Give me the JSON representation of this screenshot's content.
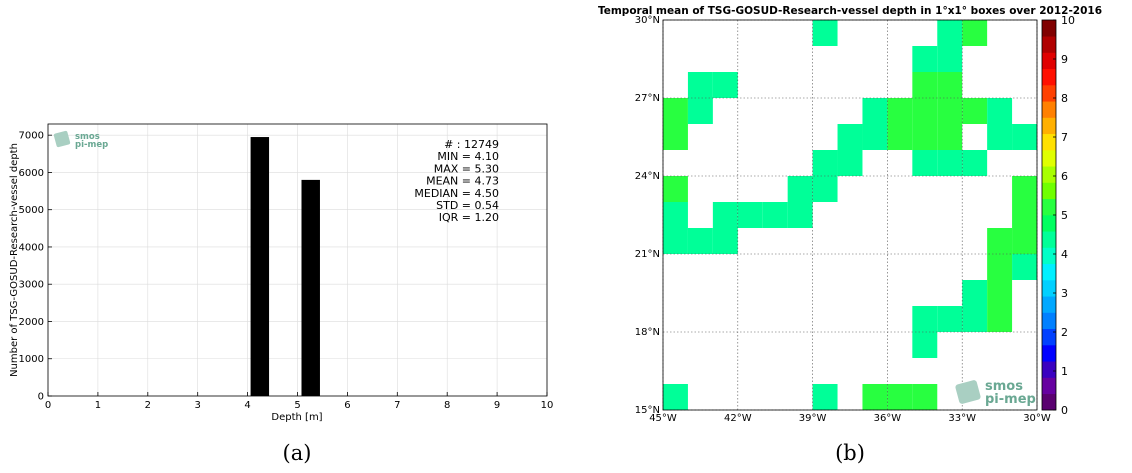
{
  "chart_data": [
    {
      "type": "bar",
      "title": "",
      "xlabel": "Depth [m]",
      "ylabel": "Number of TSG-GOSUD-Research-vessel depth",
      "xlim": [
        0,
        10
      ],
      "ylim": [
        0,
        7300
      ],
      "xticks": [
        0,
        1,
        2,
        3,
        4,
        5,
        6,
        7,
        8,
        9,
        10
      ],
      "yticks": [
        0,
        1000,
        2000,
        3000,
        4000,
        5000,
        6000,
        7000
      ],
      "grid": true,
      "bars": [
        {
          "x0": 4.06,
          "x1": 4.43,
          "value": 6950
        },
        {
          "x0": 5.08,
          "x1": 5.45,
          "value": 5800
        }
      ],
      "stats": [
        {
          "label": "# : ",
          "value": "12749"
        },
        {
          "label": "MIN = ",
          "value": "4.10"
        },
        {
          "label": "MAX =  ",
          "value": "5.30"
        },
        {
          "label": "MEAN = ",
          "value": "4.73"
        },
        {
          "label": "MEDIAN = ",
          "value": "4.50"
        },
        {
          "label": "STD = ",
          "value": "0.54"
        },
        {
          "label": "IQR = ",
          "value": "1.20"
        }
      ],
      "logo": {
        "line1": "smos",
        "line2": "pi-mep"
      },
      "caption": "(a)"
    },
    {
      "type": "heatmap",
      "title": "Temporal mean of TSG-GOSUD-Research-vessel depth in 1°x1° boxes over 2012-2016",
      "xlim": [
        -45,
        -30
      ],
      "ylim": [
        15,
        30
      ],
      "xticks": [
        -45,
        -42,
        -39,
        -36,
        -33,
        -30
      ],
      "xticklabels": [
        "45°W",
        "42°W",
        "39°W",
        "36°W",
        "33°W",
        "30°W"
      ],
      "yticks": [
        15,
        18,
        21,
        24,
        27,
        30
      ],
      "yticklabels": [
        "15°N",
        "18°N",
        "21°N",
        "24°N",
        "27°N",
        "30°N"
      ],
      "grid": true,
      "colorbar": {
        "min": 0,
        "max": 10,
        "ticks": [
          0,
          1,
          2,
          3,
          4,
          5,
          6,
          7,
          8,
          9,
          10
        ],
        "colors": [
          "#5a0070",
          "#6600a0",
          "#3a00c0",
          "#0000ff",
          "#0040ff",
          "#0080ff",
          "#00a8ff",
          "#00d0ff",
          "#00f0ff",
          "#00ffc8",
          "#00ff98",
          "#00ff60",
          "#28ff40",
          "#70ff00",
          "#a8ff00",
          "#e0ff00",
          "#ffe000",
          "#ffb000",
          "#ff8000",
          "#ff4000",
          "#ff1000",
          "#e00000",
          "#b00000",
          "#800000"
        ]
      },
      "cells": [
        {
          "lon": -39,
          "lat": 29,
          "value": 4.5
        },
        {
          "lon": -34,
          "lat": 29,
          "value": 4.5
        },
        {
          "lon": -33,
          "lat": 29,
          "value": 5.3
        },
        {
          "lon": -34,
          "lat": 28,
          "value": 4.5
        },
        {
          "lon": -35,
          "lat": 28,
          "value": 4.5
        },
        {
          "lon": -44,
          "lat": 27,
          "value": 4.5
        },
        {
          "lon": -43,
          "lat": 27,
          "value": 4.5
        },
        {
          "lon": -35,
          "lat": 27,
          "value": 5.3
        },
        {
          "lon": -34,
          "lat": 27,
          "value": 5.3
        },
        {
          "lon": -45,
          "lat": 26,
          "value": 5.3
        },
        {
          "lon": -44,
          "lat": 26,
          "value": 4.5
        },
        {
          "lon": -37,
          "lat": 26,
          "value": 4.5
        },
        {
          "lon": -36,
          "lat": 26,
          "value": 5.3
        },
        {
          "lon": -35,
          "lat": 26,
          "value": 5.3
        },
        {
          "lon": -34,
          "lat": 26,
          "value": 5.3
        },
        {
          "lon": -33,
          "lat": 26,
          "value": 5.3
        },
        {
          "lon": -45,
          "lat": 25,
          "value": 5.3
        },
        {
          "lon": -38,
          "lat": 25,
          "value": 4.5
        },
        {
          "lon": -37,
          "lat": 25,
          "value": 4.5
        },
        {
          "lon": -36,
          "lat": 25,
          "value": 5.3
        },
        {
          "lon": -35,
          "lat": 25,
          "value": 5.3
        },
        {
          "lon": -34,
          "lat": 25,
          "value": 5.3
        },
        {
          "lon": -32,
          "lat": 25,
          "value": 4.5
        },
        {
          "lon": -31,
          "lat": 25,
          "value": 4.5
        },
        {
          "lon": -32,
          "lat": 26,
          "value": 4.5
        },
        {
          "lon": -39,
          "lat": 24,
          "value": 4.5
        },
        {
          "lon": -38,
          "lat": 24,
          "value": 4.5
        },
        {
          "lon": -35,
          "lat": 24,
          "value": 4.5
        },
        {
          "lon": -34,
          "lat": 24,
          "value": 4.5
        },
        {
          "lon": -33,
          "lat": 24,
          "value": 4.5
        },
        {
          "lon": -45,
          "lat": 23,
          "value": 5.3
        },
        {
          "lon": -40,
          "lat": 23,
          "value": 4.5
        },
        {
          "lon": -39,
          "lat": 23,
          "value": 4.5
        },
        {
          "lon": -31,
          "lat": 23,
          "value": 5.3
        },
        {
          "lon": -45,
          "lat": 22,
          "value": 4.5
        },
        {
          "lon": -43,
          "lat": 22,
          "value": 4.5
        },
        {
          "lon": -42,
          "lat": 22,
          "value": 4.5
        },
        {
          "lon": -41,
          "lat": 22,
          "value": 4.5
        },
        {
          "lon": -40,
          "lat": 22,
          "value": 4.5
        },
        {
          "lon": -31,
          "lat": 22,
          "value": 5.3
        },
        {
          "lon": -45,
          "lat": 21,
          "value": 4.5
        },
        {
          "lon": -44,
          "lat": 21,
          "value": 4.5
        },
        {
          "lon": -43,
          "lat": 21,
          "value": 4.5
        },
        {
          "lon": -32,
          "lat": 21,
          "value": 5.3
        },
        {
          "lon": -31,
          "lat": 21,
          "value": 5.3
        },
        {
          "lon": -32,
          "lat": 20,
          "value": 5.3
        },
        {
          "lon": -31,
          "lat": 20,
          "value": 4.5
        },
        {
          "lon": -33,
          "lat": 19,
          "value": 4.5
        },
        {
          "lon": -32,
          "lat": 19,
          "value": 5.3
        },
        {
          "lon": -35,
          "lat": 18,
          "value": 4.5
        },
        {
          "lon": -34,
          "lat": 18,
          "value": 4.5
        },
        {
          "lon": -33,
          "lat": 18,
          "value": 4.5
        },
        {
          "lon": -32,
          "lat": 18,
          "value": 5.3
        },
        {
          "lon": -35,
          "lat": 17,
          "value": 4.5
        },
        {
          "lon": -45,
          "lat": 15,
          "value": 4.5
        },
        {
          "lon": -39,
          "lat": 15,
          "value": 4.5
        },
        {
          "lon": -37,
          "lat": 15,
          "value": 5.3
        },
        {
          "lon": -36,
          "lat": 15,
          "value": 5.3
        },
        {
          "lon": -35,
          "lat": 15,
          "value": 5.3
        }
      ],
      "logo": {
        "line1": "smos",
        "line2": "pi-mep"
      },
      "caption": "(b)"
    }
  ]
}
